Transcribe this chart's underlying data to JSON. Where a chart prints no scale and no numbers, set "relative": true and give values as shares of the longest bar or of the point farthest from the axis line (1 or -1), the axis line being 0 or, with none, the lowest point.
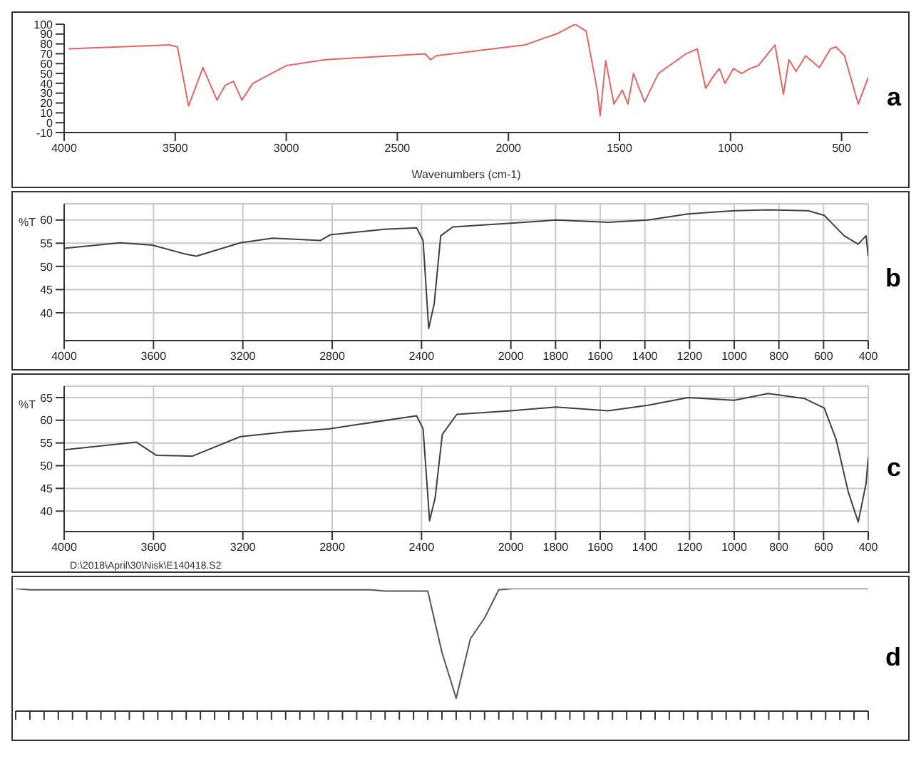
{
  "chart_data": [
    {
      "type": "line",
      "xlabel": "Wavenumbers (cm-1)",
      "annotations": [
        "a"
      ],
      "xlim": [
        4000,
        380
      ],
      "xticks": [
        4000,
        3500,
        3000,
        2500,
        2000,
        1500,
        1000,
        500
      ],
      "ylim": [
        -10,
        100
      ],
      "yticks": [
        -10,
        0,
        10,
        20,
        30,
        40,
        50,
        60,
        70,
        80,
        90,
        100
      ],
      "grid": false,
      "series": [
        {
          "color": "#e06666",
          "x": [
            3980,
            3525,
            3490,
            3440,
            3375,
            3312,
            3275,
            3238,
            3200,
            3150,
            3000,
            2825,
            2375,
            2350,
            2325,
            1925,
            1775,
            1700,
            1650,
            1600,
            1587,
            1562,
            1525,
            1487,
            1462,
            1437,
            1387,
            1325,
            1275,
            1200,
            1150,
            1112,
            1075,
            1050,
            1025,
            987,
            950,
            912,
            875,
            800,
            762,
            737,
            705,
            662,
            600,
            550,
            525,
            487,
            425,
            380
          ],
          "values": [
            75,
            79,
            77,
            17,
            56,
            23,
            38,
            42,
            23,
            40,
            58,
            64,
            70,
            64,
            68,
            79,
            91,
            100,
            93,
            33,
            7,
            63,
            19,
            33,
            19,
            50,
            21,
            50,
            58,
            70,
            75,
            35,
            48,
            55,
            40,
            55,
            50,
            55,
            58,
            79,
            29,
            64,
            52,
            68,
            56,
            75,
            77,
            68,
            19,
            46
          ]
        }
      ]
    },
    {
      "type": "line",
      "ylabel": "%T",
      "annotations": [
        "b"
      ],
      "xlim": [
        4000,
        400
      ],
      "xticks": [
        4000,
        3600,
        3200,
        2800,
        2400,
        2000,
        1800,
        1600,
        1400,
        1200,
        1000,
        800,
        600,
        400
      ],
      "ylim": [
        34,
        63.5
      ],
      "yticks": [
        40,
        45,
        50,
        55,
        60
      ],
      "grid": true,
      "series": [
        {
          "color": "#404040",
          "x": [
            4000,
            3749,
            3605,
            3462,
            3408,
            3211,
            3067,
            2852,
            2809,
            2565,
            2422,
            2393,
            2368,
            2343,
            2314,
            2260,
            2000,
            1798,
            1565,
            1386,
            1207,
            1000,
            848,
            669,
            597,
            508,
            445,
            410,
            400
          ],
          "values": [
            53.9,
            55.1,
            54.6,
            52.7,
            52.2,
            55.1,
            56.1,
            55.6,
            56.8,
            58,
            58.3,
            55.6,
            36.6,
            42,
            56.6,
            58.5,
            59.3,
            60,
            59.5,
            60,
            61.3,
            62,
            62.2,
            62,
            61,
            56.6,
            54.8,
            56.6,
            52.2
          ]
        }
      ]
    },
    {
      "type": "line",
      "ylabel": "%T",
      "annotations": [
        "c",
        "D:\\2018\\April\\30\\Nisk\\E140418.S2"
      ],
      "xlim": [
        4000,
        400
      ],
      "xticks": [
        4000,
        3600,
        3200,
        2800,
        2400,
        2000,
        1800,
        1600,
        1400,
        1200,
        1000,
        800,
        600,
        400
      ],
      "ylim": [
        35.5,
        67.5
      ],
      "yticks": [
        40,
        45,
        50,
        55,
        60,
        65
      ],
      "grid": true,
      "series": [
        {
          "color": "#404040",
          "x": [
            4000,
            3677,
            3588,
            3426,
            3211,
            2996,
            2816,
            2422,
            2393,
            2364,
            2339,
            2307,
            2242,
            2000,
            1798,
            1565,
            1386,
            1207,
            1000,
            848,
            687,
            597,
            544,
            490,
            445,
            410,
            400
          ],
          "values": [
            53.5,
            55.2,
            52.3,
            52.1,
            56.4,
            57.5,
            58.1,
            61,
            58.1,
            37.9,
            42.9,
            56.9,
            61.3,
            62.1,
            62.9,
            62.1,
            63.3,
            65,
            64.4,
            65.9,
            64.8,
            62.7,
            55.8,
            44.3,
            37.6,
            46,
            51.8
          ]
        }
      ]
    },
    {
      "type": "line",
      "relative": true,
      "annotations": [
        "d"
      ],
      "grid": false,
      "categories": [
        null,
        null,
        null,
        null,
        null,
        null,
        null,
        null,
        null,
        null,
        null,
        null,
        null,
        null,
        null,
        null,
        null,
        null,
        null,
        null,
        null,
        null,
        null,
        null,
        null,
        null,
        null,
        null,
        null,
        null,
        null,
        null,
        null,
        null,
        null,
        null,
        null,
        null,
        null,
        null,
        null,
        null,
        null,
        null,
        null,
        null,
        null,
        null,
        null,
        null,
        null,
        null,
        null,
        null,
        null,
        null,
        null,
        null,
        null,
        null,
        null
      ],
      "series": [
        {
          "color": "#555555",
          "values": [
            1,
            0.99,
            0.99,
            0.99,
            0.99,
            0.99,
            0.99,
            0.99,
            0.99,
            0.99,
            0.99,
            0.99,
            0.99,
            0.99,
            0.99,
            0.99,
            0.99,
            0.99,
            0.99,
            0.99,
            0.99,
            0.99,
            0.99,
            0.99,
            0.99,
            0.99,
            0.98,
            0.98,
            0.98,
            0.98,
            0.48,
            0.105,
            0.59,
            0.76,
            0.99,
            1,
            1,
            1,
            1,
            1,
            1,
            1,
            1,
            1,
            1,
            1,
            1,
            1,
            1,
            1,
            1,
            1,
            1,
            1,
            1,
            1,
            1,
            1,
            1,
            1,
            1
          ]
        }
      ]
    }
  ]
}
